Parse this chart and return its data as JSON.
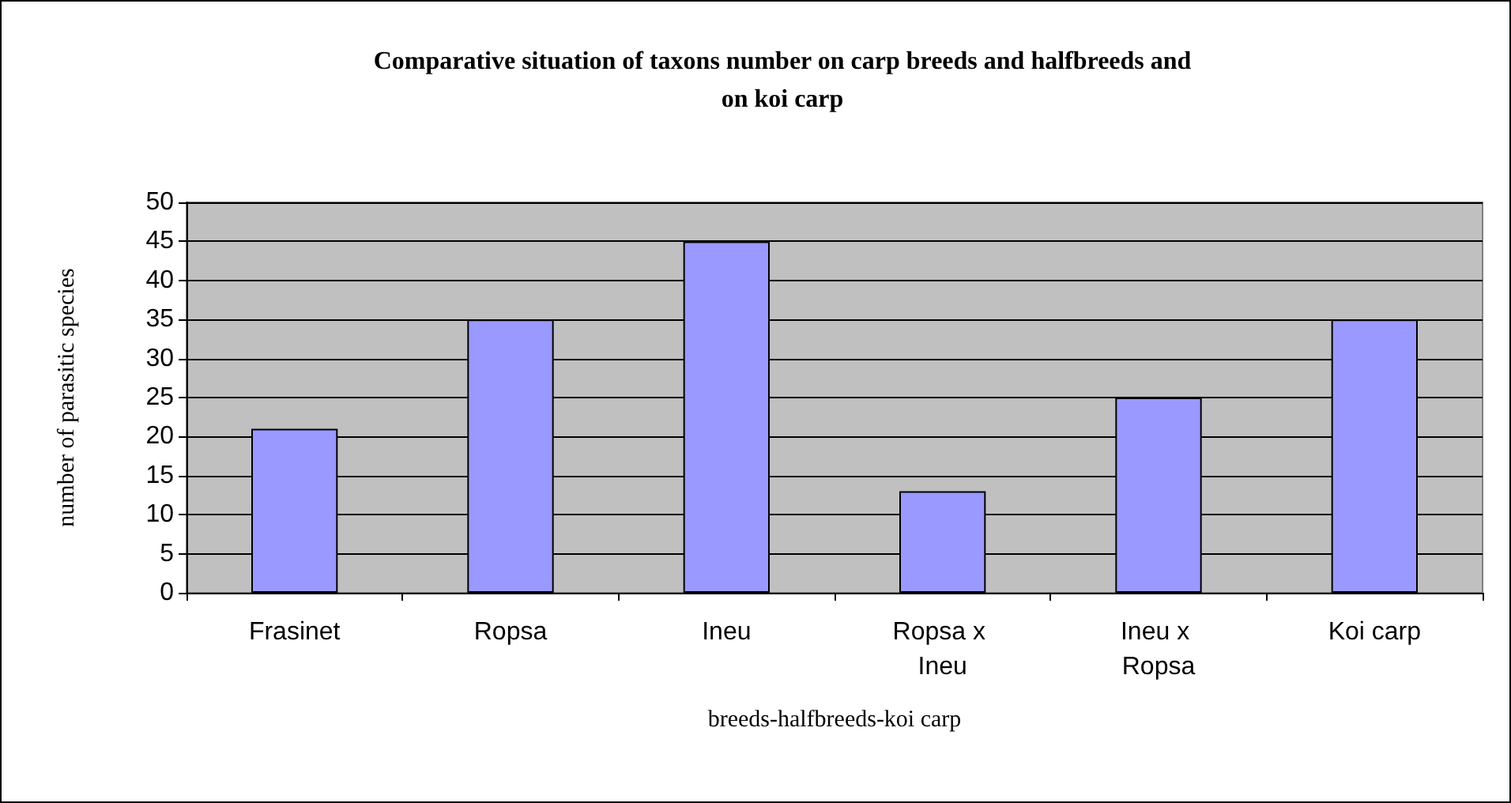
{
  "chart_data": {
    "type": "bar",
    "title": "Comparative situation of taxons number on carp breeds and halfbreeds and\non koi carp",
    "xlabel": "breeds-halfbreeds-koi carp",
    "ylabel": "number of parasitic species",
    "categories": [
      "Frasinet",
      "Ropsa",
      "Ineu",
      "Ropsa x Ineu",
      "Ineu x Ropsa",
      "Koi carp"
    ],
    "values": [
      21,
      35,
      45,
      13,
      25,
      35
    ],
    "color": "#9999ff",
    "ylim": [
      0,
      50
    ],
    "yticks": [
      0,
      5,
      10,
      15,
      20,
      25,
      30,
      35,
      40,
      45,
      50
    ],
    "grid": "y"
  }
}
